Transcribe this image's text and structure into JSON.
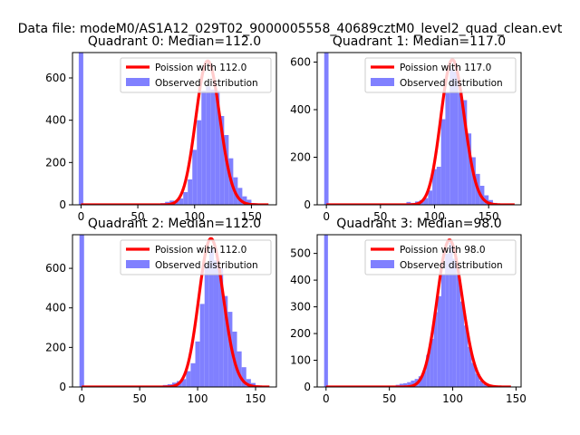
{
  "suptitle": "Data file: modeM0/AS1A12_029T02_9000005558_40689cztM0_level2_quad_clean.evt",
  "chart_data": [
    {
      "type": "bar",
      "title": "Quadrant 0: Median=112.0",
      "median": 112.0,
      "xlim": [
        -7.5,
        172
      ],
      "ylim": [
        0,
        720
      ],
      "xticks": [
        0,
        50,
        100,
        150
      ],
      "yticks": [
        0,
        200,
        400,
        600
      ],
      "xlabel": "",
      "ylabel": "",
      "legend": {
        "position": "top-right",
        "entries": [
          "Poission with 112.0",
          "Observed distribution"
        ]
      },
      "series": [
        {
          "name": "Observed distribution",
          "kind": "histogram",
          "color": "#8080ff",
          "bins": [
            [
              -2,
              2,
              720
            ],
            [
              66,
              70,
              2
            ],
            [
              70,
              74,
              8
            ],
            [
              74,
              78,
              14
            ],
            [
              78,
              82,
              20
            ],
            [
              82,
              86,
              18
            ],
            [
              86,
              90,
              30
            ],
            [
              90,
              94,
              60
            ],
            [
              94,
              98,
              120
            ],
            [
              98,
              102,
              260
            ],
            [
              102,
              106,
              400
            ],
            [
              106,
              110,
              540
            ],
            [
              110,
              114,
              560
            ],
            [
              114,
              118,
              545
            ],
            [
              118,
              122,
              540
            ],
            [
              122,
              126,
              420
            ],
            [
              126,
              130,
              330
            ],
            [
              130,
              134,
              220
            ],
            [
              134,
              138,
              130
            ],
            [
              138,
              142,
              80
            ],
            [
              142,
              146,
              40
            ],
            [
              146,
              150,
              24
            ],
            [
              150,
              154,
              8
            ],
            [
              154,
              158,
              4
            ]
          ]
        },
        {
          "name": "Poission with 112.0",
          "kind": "poisson",
          "lambda": 112.0,
          "scale": 680,
          "x_range": [
            0,
            165
          ],
          "color": "#ff0000"
        }
      ]
    },
    {
      "type": "bar",
      "title": "Quadrant 1: Median=117.0",
      "median": 117.0,
      "xlim": [
        -8.5,
        180
      ],
      "ylim": [
        0,
        640
      ],
      "xticks": [
        0,
        50,
        100,
        150
      ],
      "yticks": [
        0,
        200,
        400,
        600
      ],
      "xlabel": "",
      "ylabel": "",
      "legend": {
        "position": "top-right",
        "entries": [
          "Poission with 117.0",
          "Observed distribution"
        ]
      },
      "series": [
        {
          "name": "Observed distribution",
          "kind": "histogram",
          "color": "#8080ff",
          "bins": [
            [
              -2,
              2,
              640
            ],
            [
              70,
              74,
              4
            ],
            [
              74,
              78,
              12
            ],
            [
              78,
              82,
              8
            ],
            [
              82,
              86,
              14
            ],
            [
              86,
              90,
              20
            ],
            [
              90,
              94,
              28
            ],
            [
              94,
              98,
              60
            ],
            [
              98,
              102,
              150
            ],
            [
              102,
              106,
              160
            ],
            [
              106,
              110,
              360
            ],
            [
              110,
              114,
              470
            ],
            [
              114,
              118,
              570
            ],
            [
              118,
              122,
              560
            ],
            [
              122,
              126,
              470
            ],
            [
              126,
              130,
              440
            ],
            [
              130,
              134,
              300
            ],
            [
              134,
              138,
              200
            ],
            [
              138,
              142,
              130
            ],
            [
              142,
              146,
              80
            ],
            [
              146,
              150,
              40
            ],
            [
              150,
              154,
              20
            ],
            [
              154,
              158,
              8
            ],
            [
              158,
              162,
              4
            ]
          ]
        },
        {
          "name": "Poission with 117.0",
          "kind": "poisson",
          "lambda": 117.0,
          "scale": 610,
          "x_range": [
            0,
            174
          ],
          "color": "#ff0000"
        }
      ]
    },
    {
      "type": "bar",
      "title": "Quadrant 2: Median=112.0",
      "median": 112.0,
      "xlim": [
        -8,
        168
      ],
      "ylim": [
        0,
        770
      ],
      "xticks": [
        0,
        50,
        100,
        150
      ],
      "yticks": [
        0,
        200,
        400,
        600
      ],
      "xlabel": "",
      "ylabel": "",
      "legend": {
        "position": "top-right",
        "entries": [
          "Poission with 112.0",
          "Observed distribution"
        ]
      },
      "series": [
        {
          "name": "Observed distribution",
          "kind": "histogram",
          "color": "#8080ff",
          "bins": [
            [
              -2,
              2,
              770
            ],
            [
              66,
              70,
              4
            ],
            [
              70,
              74,
              10
            ],
            [
              74,
              78,
              14
            ],
            [
              78,
              82,
              22
            ],
            [
              82,
              86,
              30
            ],
            [
              86,
              90,
              40
            ],
            [
              90,
              94,
              80
            ],
            [
              94,
              98,
              120
            ],
            [
              98,
              102,
              230
            ],
            [
              102,
              106,
              420
            ],
            [
              106,
              110,
              620
            ],
            [
              110,
              114,
              700
            ],
            [
              114,
              118,
              640
            ],
            [
              118,
              122,
              600
            ],
            [
              122,
              126,
              460
            ],
            [
              126,
              130,
              380
            ],
            [
              130,
              134,
              280
            ],
            [
              134,
              138,
              180
            ],
            [
              138,
              142,
              100
            ],
            [
              142,
              146,
              40
            ],
            [
              146,
              150,
              20
            ],
            [
              150,
              154,
              8
            ],
            [
              154,
              158,
              4
            ]
          ]
        },
        {
          "name": "Poission with 112.0",
          "kind": "poisson",
          "lambda": 112.0,
          "scale": 750,
          "x_range": [
            0,
            162
          ],
          "color": "#ff0000"
        }
      ]
    },
    {
      "type": "bar",
      "title": "Quadrant 3: Median=98.0",
      "median": 98.0,
      "xlim": [
        -7,
        154
      ],
      "ylim": [
        0,
        570
      ],
      "xticks": [
        0,
        50,
        100,
        150
      ],
      "yticks": [
        0,
        100,
        200,
        300,
        400,
        500
      ],
      "xlabel": "",
      "ylabel": "",
      "legend": {
        "position": "top-right",
        "entries": [
          "Poission with 98.0",
          "Observed distribution"
        ]
      },
      "series": [
        {
          "name": "Observed distribution",
          "kind": "histogram",
          "color": "#8080ff",
          "bins": [
            [
              -1.5,
              1.5,
              570
            ],
            [
              52,
              55,
              4
            ],
            [
              55,
              58,
              8
            ],
            [
              58,
              61,
              12
            ],
            [
              61,
              64,
              14
            ],
            [
              64,
              67,
              18
            ],
            [
              67,
              70,
              24
            ],
            [
              70,
              73,
              30
            ],
            [
              73,
              76,
              40
            ],
            [
              76,
              79,
              60
            ],
            [
              79,
              82,
              120
            ],
            [
              82,
              85,
              180
            ],
            [
              85,
              88,
              280
            ],
            [
              88,
              91,
              340
            ],
            [
              91,
              94,
              420
            ],
            [
              94,
              97,
              500
            ],
            [
              97,
              100,
              540
            ],
            [
              100,
              103,
              480
            ],
            [
              103,
              106,
              420
            ],
            [
              106,
              109,
              320
            ],
            [
              109,
              112,
              230
            ],
            [
              112,
              115,
              150
            ],
            [
              115,
              118,
              90
            ],
            [
              118,
              121,
              50
            ],
            [
              121,
              124,
              24
            ],
            [
              124,
              127,
              10
            ],
            [
              127,
              130,
              4
            ]
          ]
        },
        {
          "name": "Poission with 98.0",
          "kind": "poisson",
          "lambda": 98.0,
          "scale": 550,
          "x_range": [
            0,
            146
          ],
          "color": "#ff0000"
        }
      ]
    }
  ]
}
